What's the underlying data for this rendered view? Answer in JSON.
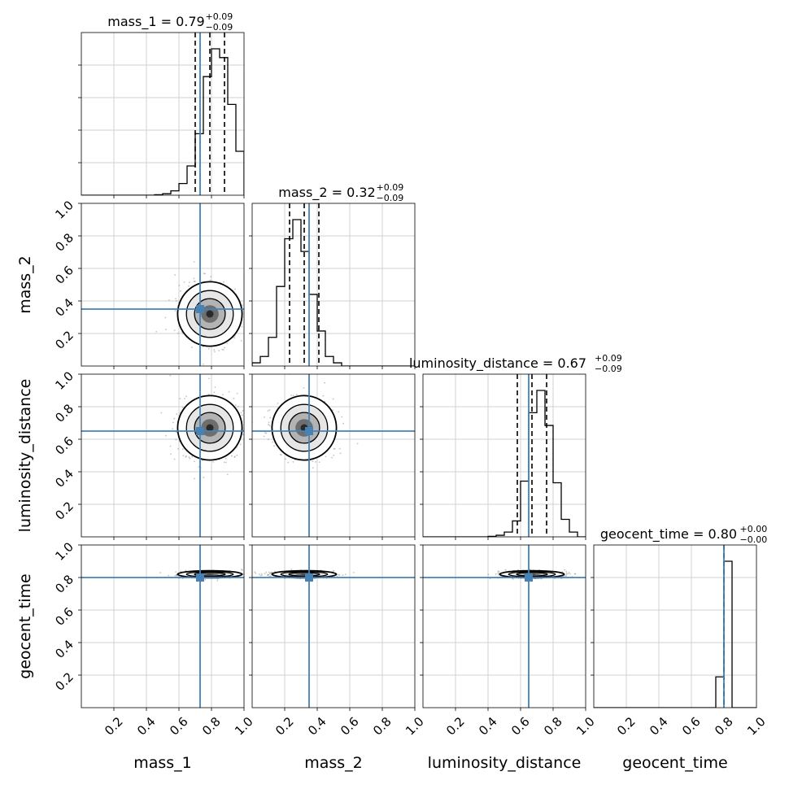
{
  "chart_data": {
    "type": "corner",
    "parameters": [
      "mass_1",
      "mass_2",
      "luminosity_distance",
      "geocent_time"
    ],
    "axis_labels": [
      "mass_1",
      "mass_2",
      "luminosity_distance",
      "geocent_time"
    ],
    "title_prefixes": [
      "mass_1 = 0.79",
      "mass_2 = 0.32",
      "luminosity_distance = 0.67",
      "geocent_time = 0.80"
    ],
    "title_plus": [
      "+0.09",
      "+0.09",
      "+0.09",
      "+0.00"
    ],
    "title_minus": [
      "−0.09",
      "−0.09",
      "−0.09",
      "−0.00"
    ],
    "axis_range": [
      0,
      1
    ],
    "tick_values": [
      0.2,
      0.4,
      0.6,
      0.8,
      1.0
    ],
    "tick_labels": [
      "0.2",
      "0.4",
      "0.6",
      "0.8",
      "1.0"
    ],
    "truths": [
      0.73,
      0.35,
      0.65,
      0.8
    ],
    "quantiles": [
      [
        0.7,
        0.79,
        0.88
      ],
      [
        0.23,
        0.32,
        0.41
      ],
      [
        0.58,
        0.67,
        0.76
      ],
      [
        0.8,
        0.8,
        0.8
      ]
    ],
    "histograms": [
      {
        "bin_edges": [
          0.0,
          0.05,
          0.1,
          0.15,
          0.2,
          0.25,
          0.3,
          0.35,
          0.4,
          0.45,
          0.5,
          0.55,
          0.6,
          0.65,
          0.7,
          0.75,
          0.8,
          0.85,
          0.9,
          0.95,
          1.0
        ],
        "heights": [
          0,
          0,
          0,
          0,
          0,
          0,
          0,
          0,
          0,
          0.003,
          0.01,
          0.03,
          0.08,
          0.2,
          0.42,
          0.81,
          1.0,
          0.94,
          0.62,
          0.3
        ]
      },
      {
        "bin_edges": [
          0.0,
          0.05,
          0.1,
          0.15,
          0.2,
          0.25,
          0.3,
          0.35,
          0.4,
          0.45,
          0.5,
          0.55,
          0.6,
          0.65,
          0.7,
          0.75,
          0.8,
          0.85,
          0.9,
          0.95,
          1.0
        ],
        "heights": [
          0.02,
          0.06,
          0.18,
          0.5,
          0.8,
          0.92,
          0.72,
          0.45,
          0.22,
          0.06,
          0.02,
          0,
          0,
          0,
          0,
          0,
          0,
          0,
          0,
          0
        ]
      },
      {
        "bin_edges": [
          0.0,
          0.05,
          0.1,
          0.15,
          0.2,
          0.25,
          0.3,
          0.35,
          0.4,
          0.45,
          0.5,
          0.55,
          0.6,
          0.65,
          0.7,
          0.75,
          0.8,
          0.85,
          0.9,
          0.95,
          1.0
        ],
        "heights": [
          0,
          0,
          0,
          0,
          0,
          0,
          0,
          0,
          0.003,
          0.01,
          0.03,
          0.1,
          0.35,
          0.78,
          0.92,
          0.7,
          0.34,
          0.11,
          0.03,
          0
        ]
      },
      {
        "bin_edges": [
          0.0,
          0.05,
          0.1,
          0.15,
          0.2,
          0.25,
          0.3,
          0.35,
          0.4,
          0.45,
          0.5,
          0.55,
          0.6,
          0.65,
          0.7,
          0.75,
          0.8,
          0.85,
          0.9,
          0.95,
          1.0
        ],
        "heights": [
          0,
          0,
          0,
          0,
          0,
          0,
          0,
          0,
          0,
          0,
          0,
          0,
          0,
          0,
          0,
          0.2,
          0.95,
          0,
          0,
          0
        ]
      }
    ],
    "pairs": [
      {
        "x": 0,
        "y": 1,
        "center": [
          0.79,
          0.32
        ],
        "sigma": [
          0.09,
          0.09
        ]
      },
      {
        "x": 0,
        "y": 2,
        "center": [
          0.79,
          0.67
        ],
        "sigma": [
          0.09,
          0.09
        ]
      },
      {
        "x": 1,
        "y": 2,
        "center": [
          0.32,
          0.67
        ],
        "sigma": [
          0.09,
          0.09
        ]
      },
      {
        "x": 0,
        "y": 3,
        "center": [
          0.79,
          0.82
        ],
        "sigma": [
          0.09,
          0.01
        ]
      },
      {
        "x": 1,
        "y": 3,
        "center": [
          0.32,
          0.82
        ],
        "sigma": [
          0.09,
          0.01
        ]
      },
      {
        "x": 2,
        "y": 3,
        "center": [
          0.67,
          0.82
        ],
        "sigma": [
          0.09,
          0.01
        ]
      }
    ],
    "grid": true,
    "truth_color": "#4682b4",
    "contour_color": "#000000",
    "fill_colors": [
      "#ffffff",
      "#e6e6e6",
      "#b3b3b3",
      "#6e6e6e",
      "#2a2a2a"
    ]
  }
}
